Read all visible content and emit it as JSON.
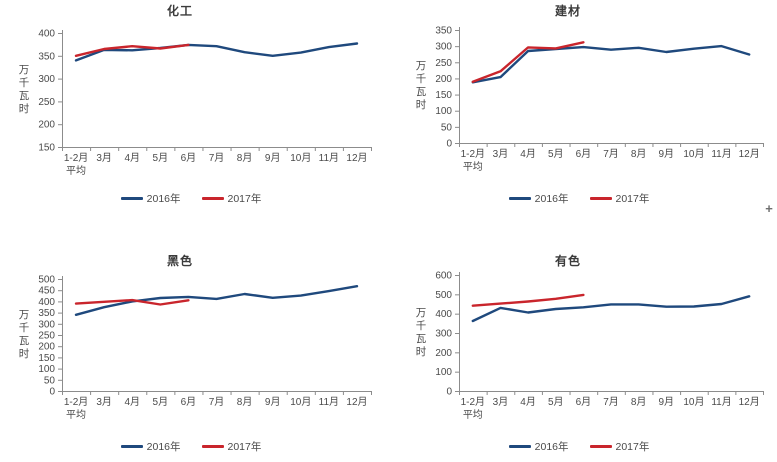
{
  "page": {
    "background": "#ffffff"
  },
  "colors": {
    "series2016": "#1F497D",
    "series2017": "#C9252C",
    "axis": "#8c8c8c",
    "text": "#4a4a4a"
  },
  "cursor": {
    "glyph": "+"
  },
  "chart_data": [
    {
      "type": "line",
      "title": "化工",
      "ylabel": "万千瓦时",
      "xlabel": "",
      "categories": [
        [
          "1-2月",
          "平均"
        ],
        "3月",
        "4月",
        "5月",
        "6月",
        "7月",
        "8月",
        "9月",
        "10月",
        "11月",
        "12月"
      ],
      "ylim": [
        150,
        400
      ],
      "yticks": [
        400,
        350,
        300,
        250,
        200,
        150
      ],
      "grid": false,
      "legend_position": "bottom",
      "series": [
        {
          "name": "2016年",
          "color": "#1F497D",
          "values": [
            340,
            363,
            362,
            367,
            374,
            371,
            358,
            350,
            357,
            369,
            377
          ]
        },
        {
          "name": "2017年",
          "color": "#C9252C",
          "values": [
            350,
            365,
            371,
            366,
            374
          ]
        }
      ]
    },
    {
      "type": "line",
      "title": "建材",
      "ylabel": "万千瓦时",
      "xlabel": "",
      "categories": [
        [
          "1-2月",
          "平均"
        ],
        "3月",
        "4月",
        "5月",
        "6月",
        "7月",
        "8月",
        "9月",
        "10月",
        "11月",
        "12月"
      ],
      "ylim": [
        0,
        350
      ],
      "yticks": [
        350,
        300,
        250,
        200,
        150,
        100,
        50,
        0
      ],
      "grid": false,
      "legend_position": "bottom",
      "series": [
        {
          "name": "2016年",
          "color": "#1F497D",
          "values": [
            188,
            204,
            285,
            291,
            297,
            289,
            295,
            282,
            292,
            300,
            274
          ]
        },
        {
          "name": "2017年",
          "color": "#C9252C",
          "values": [
            190,
            222,
            296,
            293,
            312
          ]
        }
      ]
    },
    {
      "type": "line",
      "title": "黑色",
      "ylabel": "万千瓦时",
      "xlabel": "",
      "categories": [
        [
          "1-2月",
          "平均"
        ],
        "3月",
        "4月",
        "5月",
        "6月",
        "7月",
        "8月",
        "9月",
        "10月",
        "11月",
        "12月"
      ],
      "ylim": [
        0,
        500
      ],
      "yticks": [
        500,
        450,
        400,
        350,
        300,
        250,
        200,
        150,
        100,
        50,
        0
      ],
      "grid": false,
      "legend_position": "bottom",
      "series": [
        {
          "name": "2016年",
          "color": "#1F497D",
          "values": [
            340,
            374,
            400,
            415,
            420,
            411,
            433,
            416,
            426,
            446,
            468
          ]
        },
        {
          "name": "2017年",
          "color": "#C9252C",
          "values": [
            390,
            398,
            406,
            386,
            405
          ]
        }
      ]
    },
    {
      "type": "line",
      "title": "有色",
      "ylabel": "万千瓦时",
      "xlabel": "",
      "categories": [
        [
          "1-2月",
          "平均"
        ],
        "3月",
        "4月",
        "5月",
        "6月",
        "7月",
        "8月",
        "9月",
        "10月",
        "11月",
        "12月"
      ],
      "ylim": [
        0,
        600
      ],
      "yticks": [
        600,
        500,
        400,
        300,
        200,
        100,
        0
      ],
      "grid": false,
      "legend_position": "bottom",
      "series": [
        {
          "name": "2016年",
          "color": "#1F497D",
          "values": [
            362,
            430,
            406,
            424,
            433,
            448,
            448,
            436,
            437,
            450,
            490
          ]
        },
        {
          "name": "2017年",
          "color": "#C9252C",
          "values": [
            441,
            452,
            463,
            477,
            497
          ]
        }
      ]
    }
  ]
}
